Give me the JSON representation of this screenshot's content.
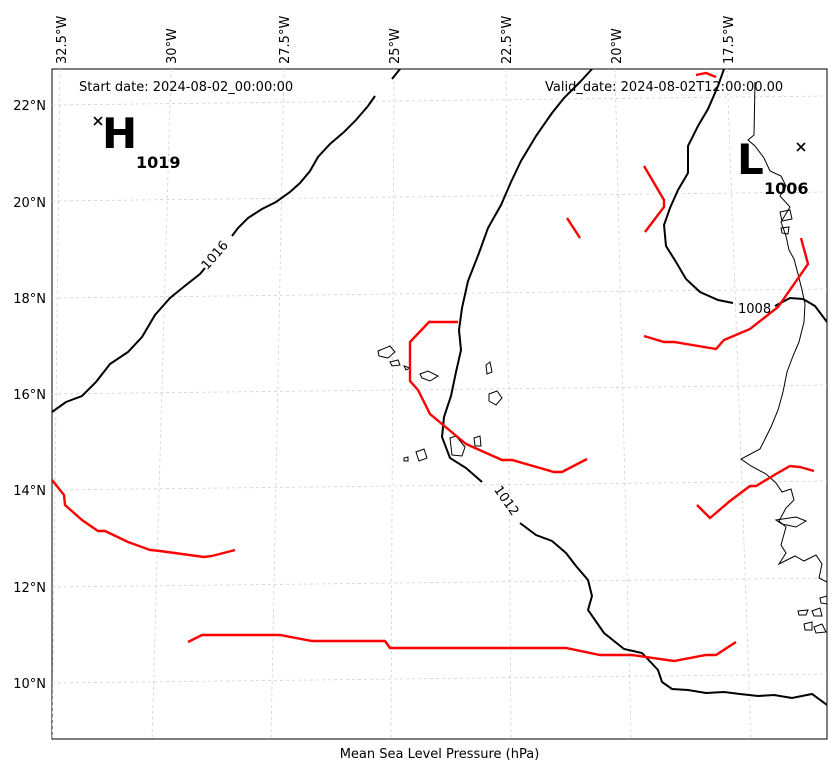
{
  "map": {
    "start_date": "Start date: 2024-08-02_00:00:00",
    "valid_date": "Valid_date: 2024-08-02T12:00:00.00",
    "xlabel": "Mean Sea Level Pressure (hPa)",
    "lon_ticks": [
      "32.5°W",
      "30°W",
      "27.5°W",
      "25°W",
      "22.5°W",
      "20°W",
      "17.5°W"
    ],
    "lat_ticks": [
      "22°N",
      "20°N",
      "18°N",
      "16°N",
      "14°N",
      "12°N",
      "10°N"
    ],
    "contour_labels": [
      "1016",
      "1012",
      "1008"
    ],
    "high": {
      "letter": "H",
      "value": "1019"
    },
    "low": {
      "letter": "L",
      "value": "1006"
    },
    "colors": {
      "isobar": "#000000",
      "front": "#ff0000",
      "grid": "#cccccc",
      "coast": "#000000"
    }
  }
}
